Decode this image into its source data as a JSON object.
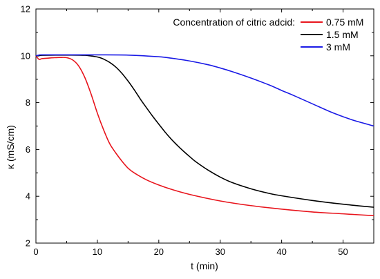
{
  "chart_data": {
    "type": "line",
    "title": "",
    "xlabel": "t (min)",
    "ylabel": "κ (mS/cm)",
    "xlim": [
      0,
      55
    ],
    "ylim": [
      2,
      12
    ],
    "xticks": [
      0,
      10,
      20,
      30,
      40,
      50
    ],
    "yticks": [
      2,
      4,
      6,
      8,
      10,
      12
    ],
    "grid": false,
    "legend": {
      "title": "Concentration of citric adcid:",
      "placement": "top-right"
    },
    "series": [
      {
        "name": "0.75 mM",
        "color": "#e8141c",
        "x": [
          0,
          0.5,
          1,
          2,
          3,
          4,
          5,
          6,
          7,
          8,
          9,
          10,
          11,
          12,
          13,
          14,
          15,
          16,
          18,
          20,
          22,
          25,
          30,
          35,
          40,
          45,
          50,
          55
        ],
        "y": [
          10.0,
          9.85,
          9.88,
          9.9,
          9.92,
          9.93,
          9.92,
          9.82,
          9.55,
          9.05,
          8.35,
          7.55,
          6.85,
          6.25,
          5.85,
          5.5,
          5.2,
          5.0,
          4.7,
          4.48,
          4.3,
          4.08,
          3.8,
          3.6,
          3.45,
          3.33,
          3.25,
          3.17
        ]
      },
      {
        "name": "1.5 mM",
        "color": "#000000",
        "x": [
          0,
          0.5,
          1,
          5,
          8,
          10,
          11,
          12,
          13,
          14,
          15,
          16,
          17,
          18,
          19,
          20,
          21,
          22,
          23,
          24,
          25,
          26,
          28,
          30,
          32,
          35,
          38,
          40,
          45,
          50,
          55
        ],
        "y": [
          10.0,
          10.0,
          10.02,
          10.03,
          10.02,
          9.95,
          9.86,
          9.72,
          9.52,
          9.25,
          8.92,
          8.55,
          8.15,
          7.78,
          7.42,
          7.08,
          6.75,
          6.45,
          6.18,
          5.93,
          5.7,
          5.48,
          5.12,
          4.82,
          4.58,
          4.32,
          4.12,
          4.02,
          3.82,
          3.66,
          3.53
        ]
      },
      {
        "name": "3 mM",
        "color": "#1a1ae6",
        "x": [
          0,
          0.5,
          1,
          5,
          10,
          15,
          20,
          22,
          25,
          28,
          30,
          32,
          35,
          38,
          40,
          42,
          45,
          48,
          50,
          52,
          55
        ],
        "y": [
          10.0,
          10.03,
          10.04,
          10.04,
          10.04,
          10.03,
          9.96,
          9.9,
          9.78,
          9.62,
          9.48,
          9.32,
          9.05,
          8.75,
          8.52,
          8.3,
          7.95,
          7.6,
          7.4,
          7.22,
          7.0
        ]
      }
    ]
  }
}
